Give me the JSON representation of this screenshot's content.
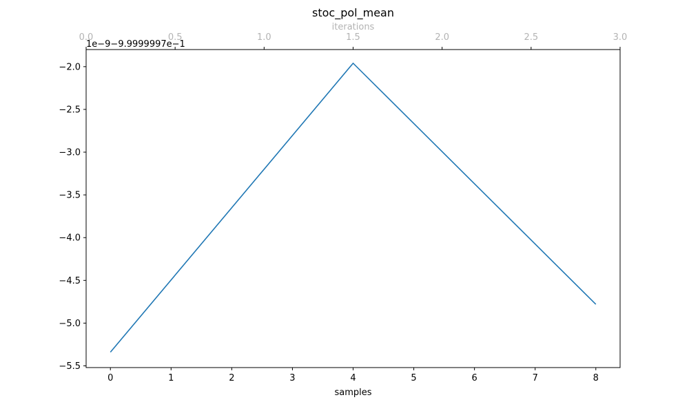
{
  "chart_data": {
    "type": "line",
    "title": "stoc_pol_mean",
    "xlabel": "samples",
    "ylabel": "",
    "x2label": "iterations",
    "offset_label": "1e−9−9.9999997e−1",
    "xlim": [
      -0.4,
      8.4
    ],
    "ylim": [
      -5.52,
      -1.8
    ],
    "x2lim": [
      0.0,
      3.0
    ],
    "x_ticks": [
      0,
      1,
      2,
      3,
      4,
      5,
      6,
      7,
      8
    ],
    "x_tick_labels": [
      "0",
      "1",
      "2",
      "3",
      "4",
      "5",
      "6",
      "7",
      "8"
    ],
    "y_ticks": [
      -5.5,
      -5.0,
      -4.5,
      -4.0,
      -3.5,
      -3.0,
      -2.5,
      -2.0
    ],
    "y_tick_labels": [
      "−5.5",
      "−5.0",
      "−4.5",
      "−4.0",
      "−3.5",
      "−3.0",
      "−2.5",
      "−2.0"
    ],
    "x2_ticks": [
      0.0,
      0.5,
      1.0,
      1.5,
      2.0,
      2.5,
      3.0
    ],
    "x2_tick_labels": [
      "0.0",
      "0.5",
      "1.0",
      "1.5",
      "2.0",
      "2.5",
      "3.0"
    ],
    "grid": false,
    "series": [
      {
        "color": "#1f77b4",
        "x": [
          0,
          4,
          8
        ],
        "y": [
          -5.34,
          -1.96,
          -4.78
        ]
      }
    ]
  }
}
